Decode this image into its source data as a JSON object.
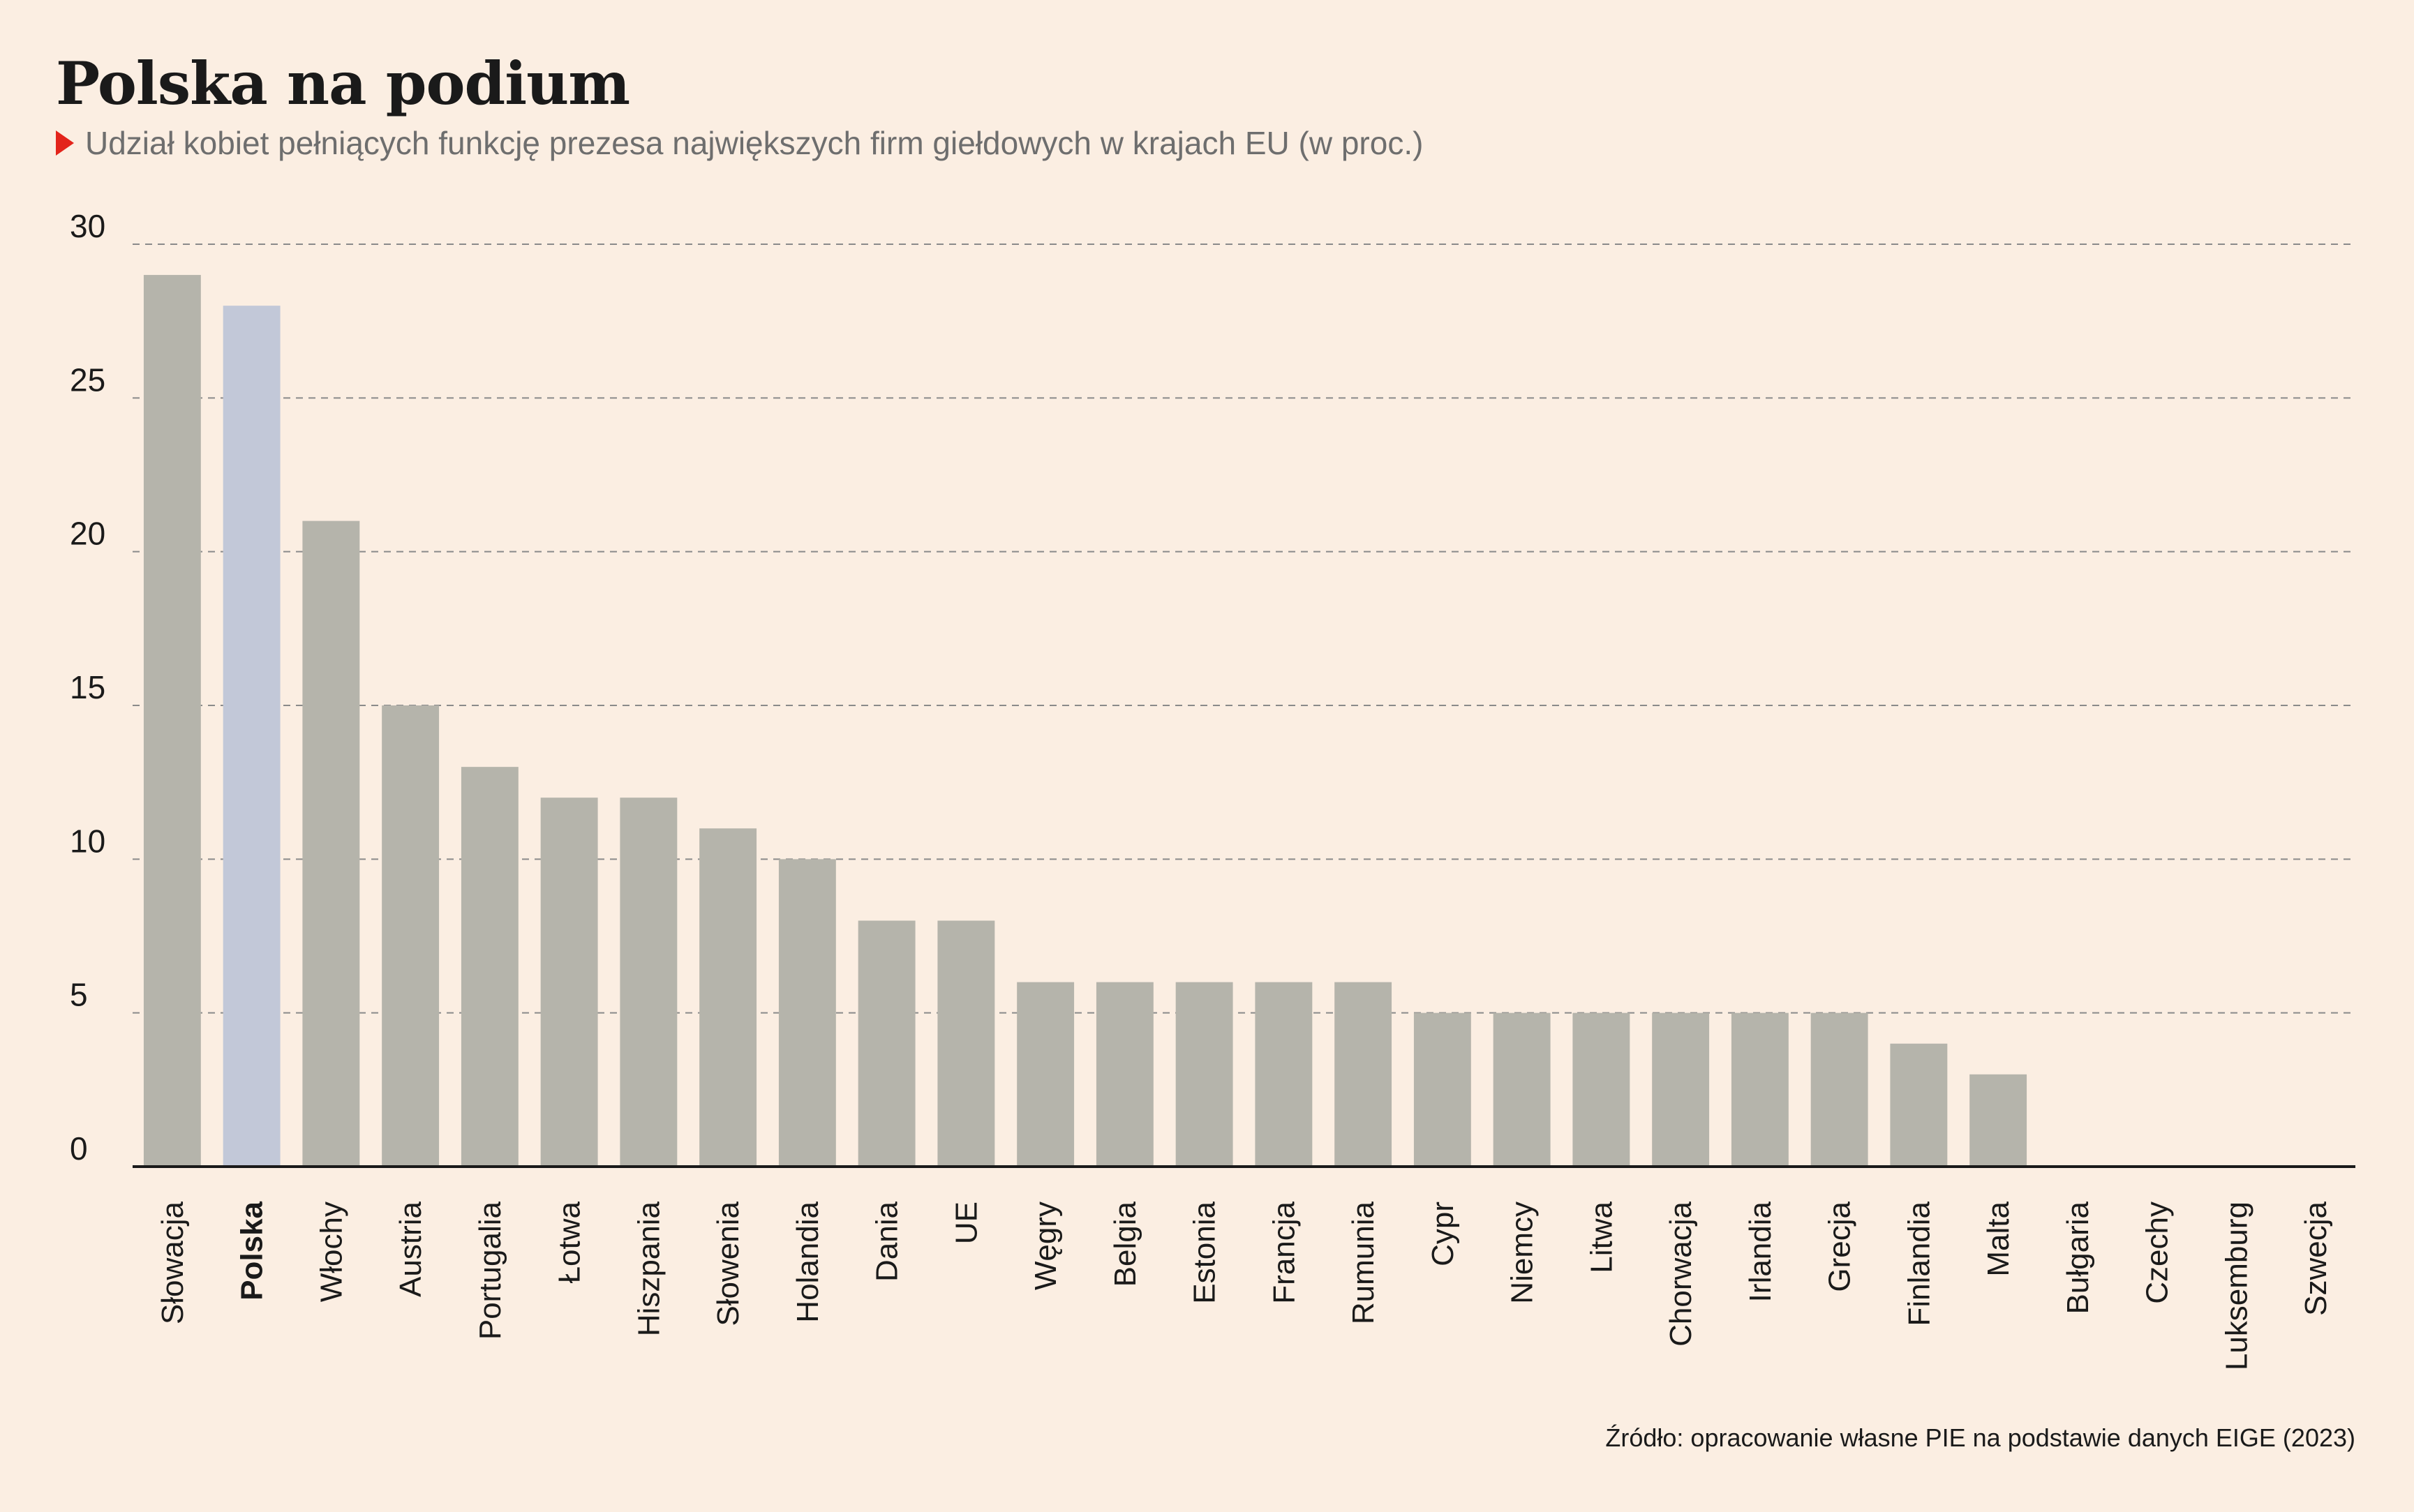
{
  "title": "Polska na podium",
  "subtitle": "Udział kobiet pełniących funkcję prezesa największych firm giełdowych w krajach EU (w proc.)",
  "source": "Źródło: opracowanie własne PIE na podstawie danych EIGE (2023)",
  "colors": {
    "bar": "#b5b4ab",
    "highlight": "#c2c8d8",
    "accent": "#e3241b",
    "background": "#fbeee2"
  },
  "chart_data": {
    "type": "bar",
    "categories": [
      "Słowacja",
      "Polska",
      "Włochy",
      "Austria",
      "Portugalia",
      "Łotwa",
      "Hiszpania",
      "Słowenia",
      "Holandia",
      "Dania",
      "UE",
      "Węgry",
      "Belgia",
      "Estonia",
      "Francja",
      "Rumunia",
      "Cypr",
      "Niemcy",
      "Litwa",
      "Chorwacja",
      "Irlandia",
      "Grecja",
      "Finlandia",
      "Malta",
      "Bułgaria",
      "Czechy",
      "Luksemburg",
      "Szwecja"
    ],
    "values": [
      29,
      28,
      21,
      15,
      13,
      12,
      12,
      11,
      10,
      8,
      8,
      6,
      6,
      6,
      6,
      6,
      5,
      5,
      5,
      5,
      5,
      5,
      4,
      3,
      0,
      0,
      0,
      0
    ],
    "highlight": "Polska",
    "yticks": [
      "0",
      "5",
      "10",
      "15",
      "20",
      "25",
      "30"
    ],
    "ylim": [
      0,
      30
    ],
    "grid": true
  }
}
